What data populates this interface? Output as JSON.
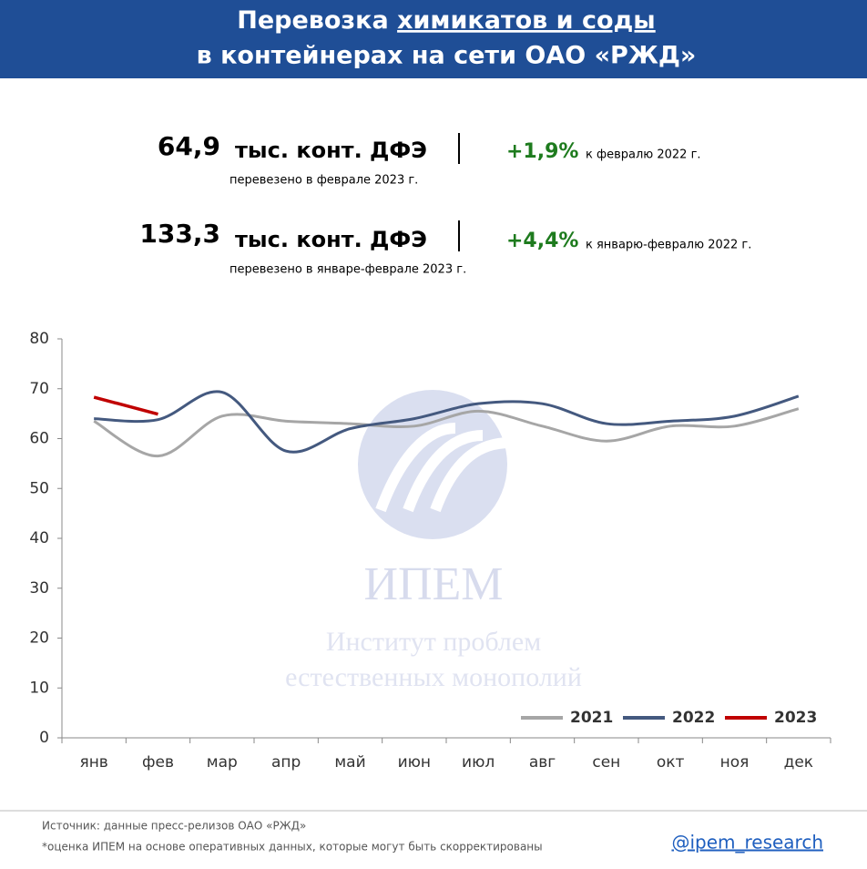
{
  "header": {
    "title_part1": "Перевозка",
    "title_underlined": "химикатов и соды",
    "title_line2": "в контейнерах на сети ОАО «РЖД»"
  },
  "kpis": [
    {
      "value": "64,9",
      "unit": "тыс. конт. ДФЭ",
      "caption": "перевезено в феврале 2023 г.",
      "change": "+1,9%",
      "change_note": "к февралю 2022 г."
    },
    {
      "value": "133,3",
      "unit": "тыс. конт. ДФЭ",
      "caption": "перевезено в январе-феврале 2023 г.",
      "change": "+4,4%",
      "change_note": "к январю-февралю 2022 г."
    }
  ],
  "watermark": {
    "name": "ИПЕМ",
    "line1": "Институт проблем",
    "line2": "естественных монополий"
  },
  "chart_data": {
    "type": "line",
    "categories": [
      "янв",
      "фев",
      "мар",
      "апр",
      "май",
      "июн",
      "июл",
      "авг",
      "сен",
      "окт",
      "ноя",
      "дек"
    ],
    "series": [
      {
        "name": "2021",
        "color": "#a6a6a6",
        "values": [
          63.5,
          56.5,
          64.5,
          63.5,
          63,
          62.5,
          65.5,
          62.5,
          59.5,
          62.5,
          62.5,
          66
        ]
      },
      {
        "name": "2022",
        "color": "#44597f",
        "values": [
          64,
          63.8,
          69.3,
          57.5,
          62,
          64,
          67,
          67,
          63,
          63.5,
          64.5,
          68.5
        ]
      },
      {
        "name": "2023",
        "color": "#c00000",
        "values": [
          68.3,
          64.9,
          null,
          null,
          null,
          null,
          null,
          null,
          null,
          null,
          null,
          null
        ]
      }
    ],
    "ylim": [
      0,
      80
    ],
    "yticks": [
      0,
      10,
      20,
      30,
      40,
      50,
      60,
      70,
      80
    ],
    "grid": false,
    "legend": "lower right"
  },
  "footer": {
    "source": "Источник: данные пресс-релизов ОАО «РЖД»",
    "note": "*оценка ИПЕМ на основе оперативных данных, которые могут быть скорректированы",
    "handle": "@ipem_research"
  }
}
